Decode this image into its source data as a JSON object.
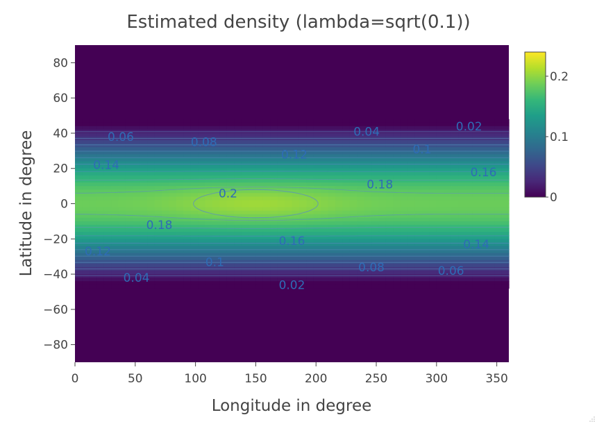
{
  "chart_data": {
    "type": "heatmap",
    "subtype": "filled-contour",
    "title": "Estimated density (lambda=sqrt(0.1))",
    "xlabel": "Longitude in degree",
    "ylabel": "Latitude in degree",
    "xlim": [
      0,
      360
    ],
    "ylim": [
      -90,
      90
    ],
    "xticks": [
      0,
      50,
      100,
      150,
      200,
      250,
      300,
      350
    ],
    "xtick_labels": [
      "0",
      "50",
      "100",
      "150",
      "200",
      "250",
      "300",
      "350"
    ],
    "yticks": [
      80,
      60,
      40,
      20,
      0,
      -20,
      -40,
      -60,
      -80
    ],
    "ytick_labels": [
      "80",
      "60",
      "40",
      "20",
      "0",
      "−20",
      "−40",
      "−60",
      "−80"
    ],
    "colorscale": "Viridis",
    "zlim": [
      0,
      0.24
    ],
    "colorbar_ticks": [
      0.2,
      0.1,
      0
    ],
    "colorbar_tick_labels": [
      "0.2",
      "0.1",
      "0"
    ],
    "density_model": {
      "peak": 0.205,
      "peak_longitude": 150,
      "peak_latitude": 0,
      "band_half_width_deg": 45,
      "zero_beyond_abs_latitude": 46
    },
    "contour_levels": [
      0.02,
      0.04,
      0.06,
      0.08,
      0.1,
      0.12,
      0.14,
      0.16,
      0.18,
      0.2
    ],
    "contour_labels": [
      {
        "text": "0.06",
        "lon": 38,
        "lat": 38
      },
      {
        "text": "0.08",
        "lon": 107,
        "lat": 35
      },
      {
        "text": "0.12",
        "lon": 182,
        "lat": 28
      },
      {
        "text": "0.1",
        "lon": 288,
        "lat": 31
      },
      {
        "text": "0.04",
        "lon": 242,
        "lat": 41
      },
      {
        "text": "0.02",
        "lon": 327,
        "lat": 44
      },
      {
        "text": "0.14",
        "lon": 26,
        "lat": 22
      },
      {
        "text": "0.16",
        "lon": 339,
        "lat": 18
      },
      {
        "text": "0.18",
        "lon": 253,
        "lat": 11
      },
      {
        "text": "0.2",
        "lon": 127,
        "lat": 6
      },
      {
        "text": "0.18",
        "lon": 70,
        "lat": -12
      },
      {
        "text": "0.16",
        "lon": 180,
        "lat": -21
      },
      {
        "text": "0.14",
        "lon": 333,
        "lat": -23
      },
      {
        "text": "0.12",
        "lon": 19,
        "lat": -27
      },
      {
        "text": "0.1",
        "lon": 116,
        "lat": -33
      },
      {
        "text": "0.08",
        "lon": 246,
        "lat": -36
      },
      {
        "text": "0.06",
        "lon": 312,
        "lat": -38
      },
      {
        "text": "0.04",
        "lon": 51,
        "lat": -42
      },
      {
        "text": "0.02",
        "lon": 180,
        "lat": -46
      }
    ]
  }
}
